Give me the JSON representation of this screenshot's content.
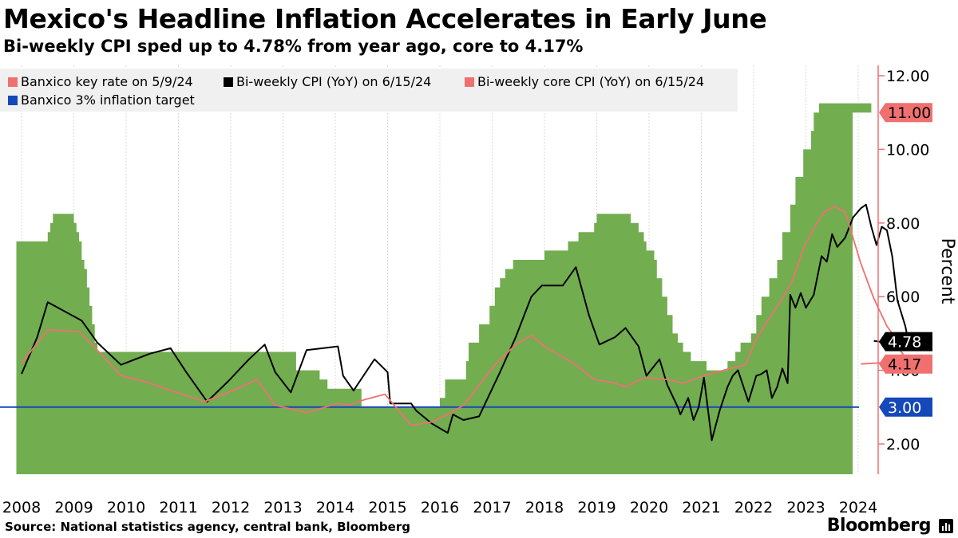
{
  "title": "Mexico's Headline Inflation Accelerates in Early June",
  "subtitle": "Bi-weekly CPI sped up to 4.78% from year ago, core to 4.17%",
  "source": "Source: National statistics agency, central bank, Bloomberg",
  "brand": "Bloomberg",
  "chart_data": {
    "type": "area",
    "ylabel": "Percent",
    "ylim": [
      1.2,
      12.4
    ],
    "yticks": [
      2,
      4,
      6,
      8,
      10,
      12
    ],
    "ytick_labels": [
      "2.00",
      "4.00",
      "6.00",
      "8.00",
      "10.00",
      "12.00"
    ],
    "xlim": [
      2007.9,
      2024.4
    ],
    "xticks": [
      2008,
      2009,
      2010,
      2011,
      2012,
      2013,
      2014,
      2015,
      2016,
      2017,
      2018,
      2019,
      2020,
      2021,
      2022,
      2023,
      2024
    ],
    "grid": "vertical",
    "legend_position": "top-left",
    "legend": [
      {
        "label": "Banxico key rate on 5/9/24",
        "color": "#f07070"
      },
      {
        "label": "Bi-weekly CPI (YoY) on 6/15/24",
        "color": "#000000"
      },
      {
        "label": "Bi-weekly core CPI (YoY) on 6/15/24",
        "color": "#f07070"
      },
      {
        "label": "Banxico 3% inflation target",
        "color": "#1548b8"
      }
    ],
    "end_labels": [
      {
        "value": 11.0,
        "text": "11.00",
        "bg": "#f07070",
        "fg": "#000000"
      },
      {
        "value": 4.78,
        "text": "4.78",
        "bg": "#000000",
        "fg": "#ffffff"
      },
      {
        "value": 4.17,
        "text": "4.17",
        "bg": "#f07070",
        "fg": "#000000"
      },
      {
        "value": 3.0,
        "text": "3.00",
        "bg": "#1548b8",
        "fg": "#ffffff"
      }
    ],
    "series": [
      {
        "name": "Banxico key rate on 5/9/24",
        "kind": "area",
        "color": "#72ad50",
        "points": [
          [
            2007.9,
            7.5
          ],
          [
            2008.1,
            7.5
          ],
          [
            2008.45,
            7.5
          ],
          [
            2008.5,
            7.75
          ],
          [
            2008.55,
            8.0
          ],
          [
            2008.6,
            8.25
          ],
          [
            2008.95,
            8.25
          ],
          [
            2009.0,
            8.0
          ],
          [
            2009.05,
            7.75
          ],
          [
            2009.1,
            7.5
          ],
          [
            2009.15,
            7.0
          ],
          [
            2009.2,
            6.75
          ],
          [
            2009.25,
            6.25
          ],
          [
            2009.3,
            5.75
          ],
          [
            2009.35,
            5.25
          ],
          [
            2009.4,
            4.75
          ],
          [
            2009.45,
            4.5
          ],
          [
            2012.0,
            4.5
          ],
          [
            2012.75,
            4.5
          ],
          [
            2013.25,
            4.0
          ],
          [
            2013.7,
            3.75
          ],
          [
            2013.85,
            3.5
          ],
          [
            2014.35,
            3.5
          ],
          [
            2014.5,
            3.0
          ],
          [
            2015.9,
            3.0
          ],
          [
            2016.0,
            3.25
          ],
          [
            2016.1,
            3.75
          ],
          [
            2016.5,
            4.25
          ],
          [
            2016.55,
            4.75
          ],
          [
            2016.75,
            5.25
          ],
          [
            2016.95,
            5.75
          ],
          [
            2017.05,
            6.25
          ],
          [
            2017.15,
            6.5
          ],
          [
            2017.25,
            6.75
          ],
          [
            2017.4,
            7.0
          ],
          [
            2017.95,
            7.0
          ],
          [
            2018.0,
            7.25
          ],
          [
            2018.45,
            7.5
          ],
          [
            2018.65,
            7.75
          ],
          [
            2018.95,
            8.0
          ],
          [
            2019.0,
            8.25
          ],
          [
            2019.6,
            8.25
          ],
          [
            2019.65,
            8.0
          ],
          [
            2019.8,
            7.75
          ],
          [
            2019.9,
            7.5
          ],
          [
            2019.95,
            7.25
          ],
          [
            2020.1,
            7.0
          ],
          [
            2020.15,
            6.5
          ],
          [
            2020.25,
            6.0
          ],
          [
            2020.35,
            5.5
          ],
          [
            2020.45,
            5.0
          ],
          [
            2020.55,
            4.75
          ],
          [
            2020.65,
            4.5
          ],
          [
            2020.8,
            4.25
          ],
          [
            2021.1,
            4.0
          ],
          [
            2021.5,
            4.25
          ],
          [
            2021.65,
            4.5
          ],
          [
            2021.75,
            4.75
          ],
          [
            2021.95,
            5.0
          ],
          [
            2022.05,
            5.5
          ],
          [
            2022.15,
            6.0
          ],
          [
            2022.3,
            6.5
          ],
          [
            2022.45,
            7.0
          ],
          [
            2022.55,
            7.75
          ],
          [
            2022.7,
            8.5
          ],
          [
            2022.8,
            9.25
          ],
          [
            2022.95,
            10.0
          ],
          [
            2023.1,
            10.5
          ],
          [
            2023.15,
            11.0
          ],
          [
            2023.25,
            11.25
          ],
          [
            2024.15,
            11.25
          ],
          [
            2024.25,
            11.0
          ]
        ]
      },
      {
        "name": "Bi-weekly CPI (YoY) on 6/15/24",
        "kind": "line",
        "color": "#000000",
        "points": [
          [
            2008.0,
            3.9
          ],
          [
            2008.3,
            4.9
          ],
          [
            2008.5,
            5.85
          ],
          [
            2009.15,
            5.35
          ],
          [
            2009.45,
            4.75
          ],
          [
            2009.9,
            4.15
          ],
          [
            2010.45,
            4.45
          ],
          [
            2010.85,
            4.6
          ],
          [
            2011.15,
            3.95
          ],
          [
            2011.55,
            3.15
          ],
          [
            2011.95,
            3.7
          ],
          [
            2012.35,
            4.3
          ],
          [
            2012.65,
            4.7
          ],
          [
            2012.85,
            3.95
          ],
          [
            2013.15,
            3.4
          ],
          [
            2013.45,
            4.55
          ],
          [
            2014.05,
            4.65
          ],
          [
            2014.15,
            3.85
          ],
          [
            2014.35,
            3.45
          ],
          [
            2014.75,
            4.3
          ],
          [
            2015.0,
            3.95
          ],
          [
            2015.05,
            3.1
          ],
          [
            2015.45,
            3.1
          ],
          [
            2015.55,
            2.9
          ],
          [
            2015.85,
            2.55
          ],
          [
            2016.15,
            2.3
          ],
          [
            2016.25,
            2.8
          ],
          [
            2016.45,
            2.65
          ],
          [
            2016.75,
            2.75
          ],
          [
            2017.15,
            3.95
          ],
          [
            2017.45,
            4.9
          ],
          [
            2017.75,
            6.0
          ],
          [
            2017.95,
            6.3
          ],
          [
            2018.35,
            6.3
          ],
          [
            2018.6,
            6.8
          ],
          [
            2018.85,
            5.5
          ],
          [
            2019.05,
            4.7
          ],
          [
            2019.35,
            4.9
          ],
          [
            2019.55,
            5.15
          ],
          [
            2019.8,
            4.65
          ],
          [
            2019.95,
            3.85
          ],
          [
            2020.2,
            4.3
          ],
          [
            2020.35,
            3.6
          ],
          [
            2020.55,
            3.0
          ],
          [
            2020.6,
            2.8
          ],
          [
            2020.75,
            3.25
          ],
          [
            2020.85,
            2.65
          ],
          [
            2020.95,
            3.0
          ],
          [
            2021.05,
            3.8
          ],
          [
            2021.2,
            2.1
          ],
          [
            2021.35,
            2.9
          ],
          [
            2021.5,
            3.55
          ],
          [
            2021.6,
            3.85
          ],
          [
            2021.7,
            4.0
          ],
          [
            2021.9,
            3.15
          ],
          [
            2022.05,
            3.85
          ],
          [
            2022.15,
            3.9
          ],
          [
            2022.25,
            4.0
          ],
          [
            2022.35,
            3.25
          ],
          [
            2022.45,
            3.55
          ],
          [
            2022.55,
            4.05
          ],
          [
            2022.65,
            3.65
          ],
          [
            2022.7,
            6.05
          ],
          [
            2022.8,
            5.7
          ],
          [
            2022.9,
            6.1
          ],
          [
            2023.0,
            5.7
          ],
          [
            2023.15,
            6.05
          ],
          [
            2023.3,
            7.1
          ],
          [
            2023.4,
            6.95
          ],
          [
            2023.5,
            7.7
          ],
          [
            2023.6,
            7.35
          ],
          [
            2023.75,
            7.6
          ],
          [
            2023.9,
            8.15
          ],
          [
            2024.05,
            8.4
          ],
          [
            2024.15,
            8.5
          ],
          [
            2024.25,
            7.9
          ],
          [
            2024.35,
            7.4
          ],
          [
            2024.45,
            7.9
          ],
          [
            2024.55,
            7.8
          ],
          [
            2024.65,
            7.1
          ],
          [
            2024.75,
            5.9
          ],
          [
            2024.9,
            5.2
          ],
          [
            2024.98,
            4.65
          ],
          [
            2024.3,
            4.8
          ]
        ]
      },
      {
        "name": "Bi-weekly core CPI (YoY) on 6/15/24",
        "kind": "line",
        "color": "#f07070",
        "points": [
          [
            2008.0,
            4.2
          ],
          [
            2008.5,
            5.1
          ],
          [
            2009.1,
            5.05
          ],
          [
            2009.45,
            4.55
          ],
          [
            2009.9,
            3.85
          ],
          [
            2010.35,
            3.7
          ],
          [
            2010.85,
            3.45
          ],
          [
            2011.5,
            3.15
          ],
          [
            2012.05,
            3.45
          ],
          [
            2012.5,
            3.75
          ],
          [
            2012.85,
            3.05
          ],
          [
            2013.45,
            2.85
          ],
          [
            2014.05,
            3.1
          ],
          [
            2014.25,
            3.05
          ],
          [
            2014.55,
            3.2
          ],
          [
            2014.95,
            3.35
          ],
          [
            2015.45,
            2.5
          ],
          [
            2015.85,
            2.6
          ],
          [
            2016.15,
            2.8
          ],
          [
            2016.45,
            3.05
          ],
          [
            2016.75,
            3.6
          ],
          [
            2017.05,
            4.15
          ],
          [
            2017.45,
            4.7
          ],
          [
            2017.75,
            4.95
          ],
          [
            2018.05,
            4.6
          ],
          [
            2018.55,
            4.2
          ],
          [
            2018.95,
            3.75
          ],
          [
            2019.35,
            3.65
          ],
          [
            2019.55,
            3.55
          ],
          [
            2019.75,
            3.7
          ],
          [
            2019.95,
            3.8
          ],
          [
            2020.35,
            3.75
          ],
          [
            2020.65,
            3.65
          ],
          [
            2021.05,
            3.85
          ],
          [
            2021.3,
            3.95
          ],
          [
            2021.55,
            4.05
          ],
          [
            2021.85,
            4.15
          ],
          [
            2022.05,
            4.85
          ],
          [
            2022.25,
            5.3
          ],
          [
            2022.55,
            5.95
          ],
          [
            2022.75,
            6.45
          ],
          [
            2022.95,
            7.3
          ],
          [
            2023.15,
            7.85
          ],
          [
            2023.35,
            8.3
          ],
          [
            2023.55,
            8.45
          ],
          [
            2023.75,
            8.3
          ],
          [
            2023.9,
            7.6
          ],
          [
            2024.05,
            6.9
          ],
          [
            2024.3,
            5.95
          ],
          [
            2024.55,
            5.2
          ],
          [
            2024.75,
            4.8
          ],
          [
            2024.8,
            4.55
          ],
          [
            2024.85,
            4.45
          ],
          [
            2024.95,
            4.25
          ],
          [
            2024.05,
            4.17
          ]
        ]
      },
      {
        "name": "Banxico 3% inflation target",
        "kind": "hline",
        "color": "#1548b8",
        "value": 3.0
      }
    ]
  }
}
